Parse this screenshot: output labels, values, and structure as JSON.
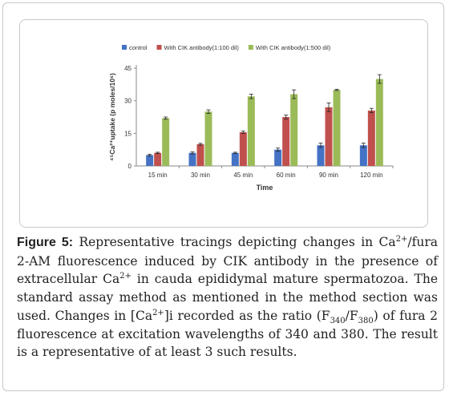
{
  "chart_data": {
    "type": "bar",
    "categories": [
      "15 min",
      "30 min",
      "45 min",
      "60 min",
      "90 min",
      "120 min"
    ],
    "series": [
      {
        "name": "control",
        "color": "#4472c4",
        "values": [
          5,
          6,
          6,
          7.5,
          9.5,
          9.5
        ],
        "errors": [
          0.4,
          0.5,
          0.3,
          0.7,
          1.0,
          1.0
        ]
      },
      {
        "name": "With CIK antibody(1:100 dil)",
        "color": "#c0504d",
        "values": [
          6,
          10,
          15.5,
          22.5,
          27,
          25.5
        ],
        "errors": [
          0.3,
          0.4,
          0.5,
          0.9,
          2.0,
          1.0
        ]
      },
      {
        "name": "With CIK antibody(1:500 dil)",
        "color": "#9bbb59",
        "values": [
          22,
          25,
          32,
          33,
          35,
          40
        ],
        "errors": [
          0.5,
          0.8,
          1.0,
          2.0,
          0.3,
          2.0
        ]
      }
    ],
    "yticks": [
      0,
      15,
      30,
      45
    ],
    "ylim": [
      0,
      45
    ],
    "xlabel": "Time",
    "ylabel": "⁴⁵Ca²⁺uptake (p moles/10⁶)",
    "legend": "top",
    "grid": false
  },
  "caption": {
    "label": "Figure 5:",
    "parts": [
      {
        "t": " Representative tracings depicting changes in Ca"
      },
      {
        "sup": "2+"
      },
      {
        "t": "/fura 2-AM fluorescence induced by CIK antibody in the presence of extracellular Ca"
      },
      {
        "sup": "2+"
      },
      {
        "t": " in cauda epididymal mature spermatozoa. The standard assay method as mentioned in the method section was used. Changes in [Ca"
      },
      {
        "sup": "2+"
      },
      {
        "t": "]i recorded as the ratio (F"
      },
      {
        "sub": "340"
      },
      {
        "t": "/F"
      },
      {
        "sub": "380"
      },
      {
        "t": ") of fura 2 fluorescence at excitation wavelengths of 340 and 380. The result is a representative of at least 3 such results."
      }
    ]
  }
}
